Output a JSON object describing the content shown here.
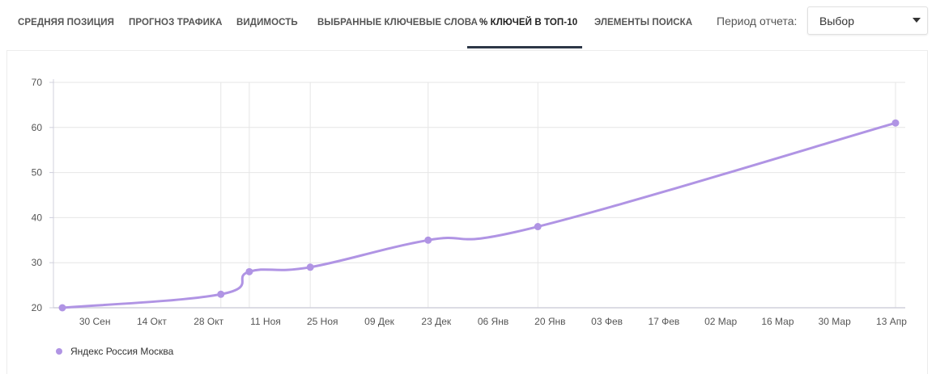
{
  "tabs": [
    {
      "label": "СРЕДНЯЯ ПОЗИЦИЯ",
      "active": false
    },
    {
      "label": "ПРОГНОЗ ТРАФИКА",
      "active": false
    },
    {
      "label": "ВИДИМОСТЬ",
      "active": false
    },
    {
      "label": "ВЫБРАННЫЕ КЛЮЧЕВЫЕ СЛОВА",
      "active": false
    },
    {
      "label": "% КЛЮЧЕЙ В ТОП-10",
      "active": true
    },
    {
      "label": "ЭЛЕМЕНТЫ ПОИСКА",
      "active": false
    }
  ],
  "period": {
    "label": "Период отчета:",
    "selected": "Выбор"
  },
  "colors": {
    "series": "#b094e4",
    "grid": "#e6e6e6",
    "axis": "#d0d0dc",
    "tick_text": "#555555"
  },
  "chart_data": {
    "type": "line",
    "title": "",
    "xlabel": "",
    "ylabel": "",
    "ylim": [
      20,
      70
    ],
    "y_ticks": [
      20,
      30,
      40,
      50,
      60,
      70
    ],
    "x_tick_labels": [
      "30 Сен",
      "14 Окт",
      "28 Окт",
      "11 Ноя",
      "25 Ноя",
      "09 Дек",
      "23 Дек",
      "06 Янв",
      "20 Янв",
      "03 Фев",
      "17 Фев",
      "02 Мар",
      "16 Мар",
      "30 Мар",
      "13 Апр"
    ],
    "grid": true,
    "legend_position": "bottom-left",
    "series": [
      {
        "name": "Яндекс Россия Москва",
        "color": "#b094e4",
        "points": [
          {
            "x": "2021-09-22",
            "y": 20
          },
          {
            "x": "2021-10-31",
            "y": 23
          },
          {
            "x": "2021-11-07",
            "y": 28
          },
          {
            "x": "2021-11-22",
            "y": 29
          },
          {
            "x": "2021-12-21",
            "y": 35
          },
          {
            "x": "2022-01-17",
            "y": 38
          },
          {
            "x": "2022-04-15",
            "y": 61
          }
        ]
      }
    ]
  }
}
